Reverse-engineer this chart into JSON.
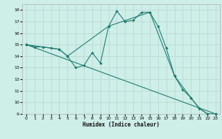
{
  "xlabel": "Humidex (Indice chaleur)",
  "bg_color": "#ceeee8",
  "grid_color": "#b8d8d4",
  "line_color": "#1e7a6e",
  "xlim": [
    -0.5,
    23.5
  ],
  "ylim": [
    9,
    18.5
  ],
  "xticks": [
    0,
    1,
    2,
    3,
    4,
    5,
    6,
    7,
    8,
    9,
    10,
    11,
    12,
    13,
    14,
    15,
    16,
    17,
    18,
    19,
    20,
    21,
    22,
    23
  ],
  "yticks": [
    9,
    10,
    11,
    12,
    13,
    14,
    15,
    16,
    17,
    18
  ],
  "series1_x": [
    0,
    1,
    2,
    3,
    4,
    5,
    6,
    7,
    8,
    9,
    10,
    11,
    12,
    13,
    14,
    15,
    16,
    17,
    18,
    19,
    20,
    21,
    22,
    23
  ],
  "series1_y": [
    15.0,
    14.8,
    14.8,
    14.7,
    14.6,
    14.0,
    13.0,
    13.2,
    14.3,
    13.4,
    16.6,
    17.9,
    17.0,
    17.1,
    17.8,
    17.8,
    16.6,
    14.7,
    12.3,
    11.1,
    10.4,
    9.5,
    9.0,
    9.0
  ],
  "series2_x": [
    0,
    4,
    5,
    10,
    15,
    18,
    20,
    21,
    22,
    23
  ],
  "series2_y": [
    15.0,
    14.6,
    14.0,
    16.6,
    17.8,
    12.3,
    10.4,
    9.5,
    9.0,
    9.0
  ],
  "series3_x": [
    0,
    23
  ],
  "series3_y": [
    15.0,
    9.0
  ]
}
